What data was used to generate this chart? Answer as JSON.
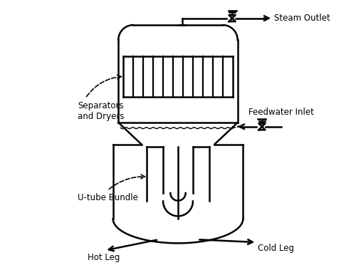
{
  "line_color": "black",
  "line_width": 1.8,
  "font_size": 8.5,
  "figsize": [
    5.0,
    3.86
  ],
  "dpi": 100,
  "labels": {
    "steam_outlet": "Steam Outlet",
    "feedwater_inlet": "Feedwater Inlet",
    "separators_dryers": "Separators\nand Dryers",
    "u_tube_bundle": "U-tube Bundle",
    "hot_leg": "Hot Leg",
    "cold_leg": "Cold Leg"
  },
  "n_sep_dividers": 11,
  "valve_size": 0.12
}
